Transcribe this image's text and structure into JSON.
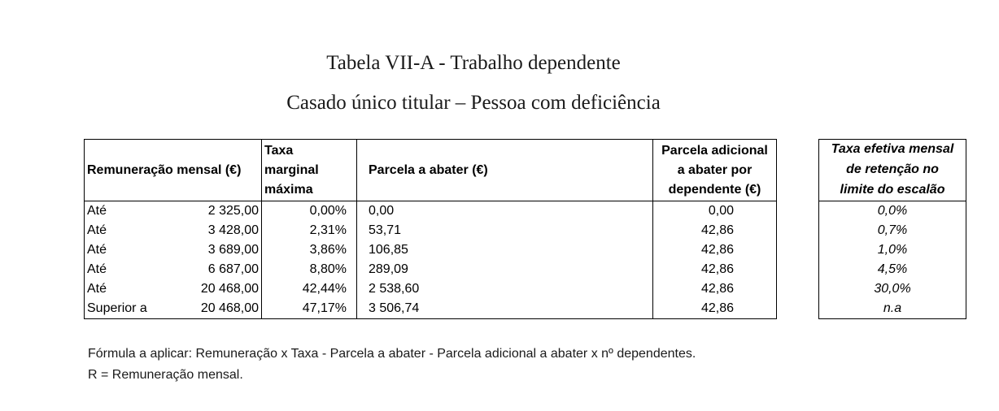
{
  "title": "Tabela VII-A - Trabalho dependente",
  "subtitle": "Casado único titular – Pessoa com deficiência",
  "headers": {
    "remuneracao": "Remuneração mensal (€)",
    "taxa_l1": "Taxa",
    "taxa_l2": "marginal",
    "taxa_l3": "máxima",
    "parcela": "Parcela a abater (€)",
    "adicional_l1": "Parcela adicional",
    "adicional_l2": "a abater por",
    "adicional_l3": "dependente (€)",
    "efetiva_l1": "Taxa efetiva mensal",
    "efetiva_l2": "de retenção no",
    "efetiva_l3": "limite do escalão"
  },
  "rows": [
    {
      "label": "Até",
      "value": "2 325,00",
      "taxa": "0,00%",
      "parcela": "0,00",
      "adicional": "0,00",
      "efetiva": "0,0%"
    },
    {
      "label": "Até",
      "value": "3 428,00",
      "taxa": "2,31%",
      "parcela": "53,71",
      "adicional": "42,86",
      "efetiva": "0,7%"
    },
    {
      "label": "Até",
      "value": "3 689,00",
      "taxa": "3,86%",
      "parcela": "106,85",
      "adicional": "42,86",
      "efetiva": "1,0%"
    },
    {
      "label": "Até",
      "value": "6 687,00",
      "taxa": "8,80%",
      "parcela": "289,09",
      "adicional": "42,86",
      "efetiva": "4,5%"
    },
    {
      "label": "Até",
      "value": "20 468,00",
      "taxa": "42,44%",
      "parcela": "2 538,60",
      "adicional": "42,86",
      "efetiva": "30,0%"
    },
    {
      "label": "Superior a",
      "value": "20 468,00",
      "taxa": "47,17%",
      "parcela": "3 506,74",
      "adicional": "42,86",
      "efetiva": "n.a"
    }
  ],
  "footnote_1": "Fórmula a aplicar: Remuneração x Taxa - Parcela a abater - Parcela adicional a abater x nº dependentes.",
  "footnote_2": "R = Remuneração mensal."
}
